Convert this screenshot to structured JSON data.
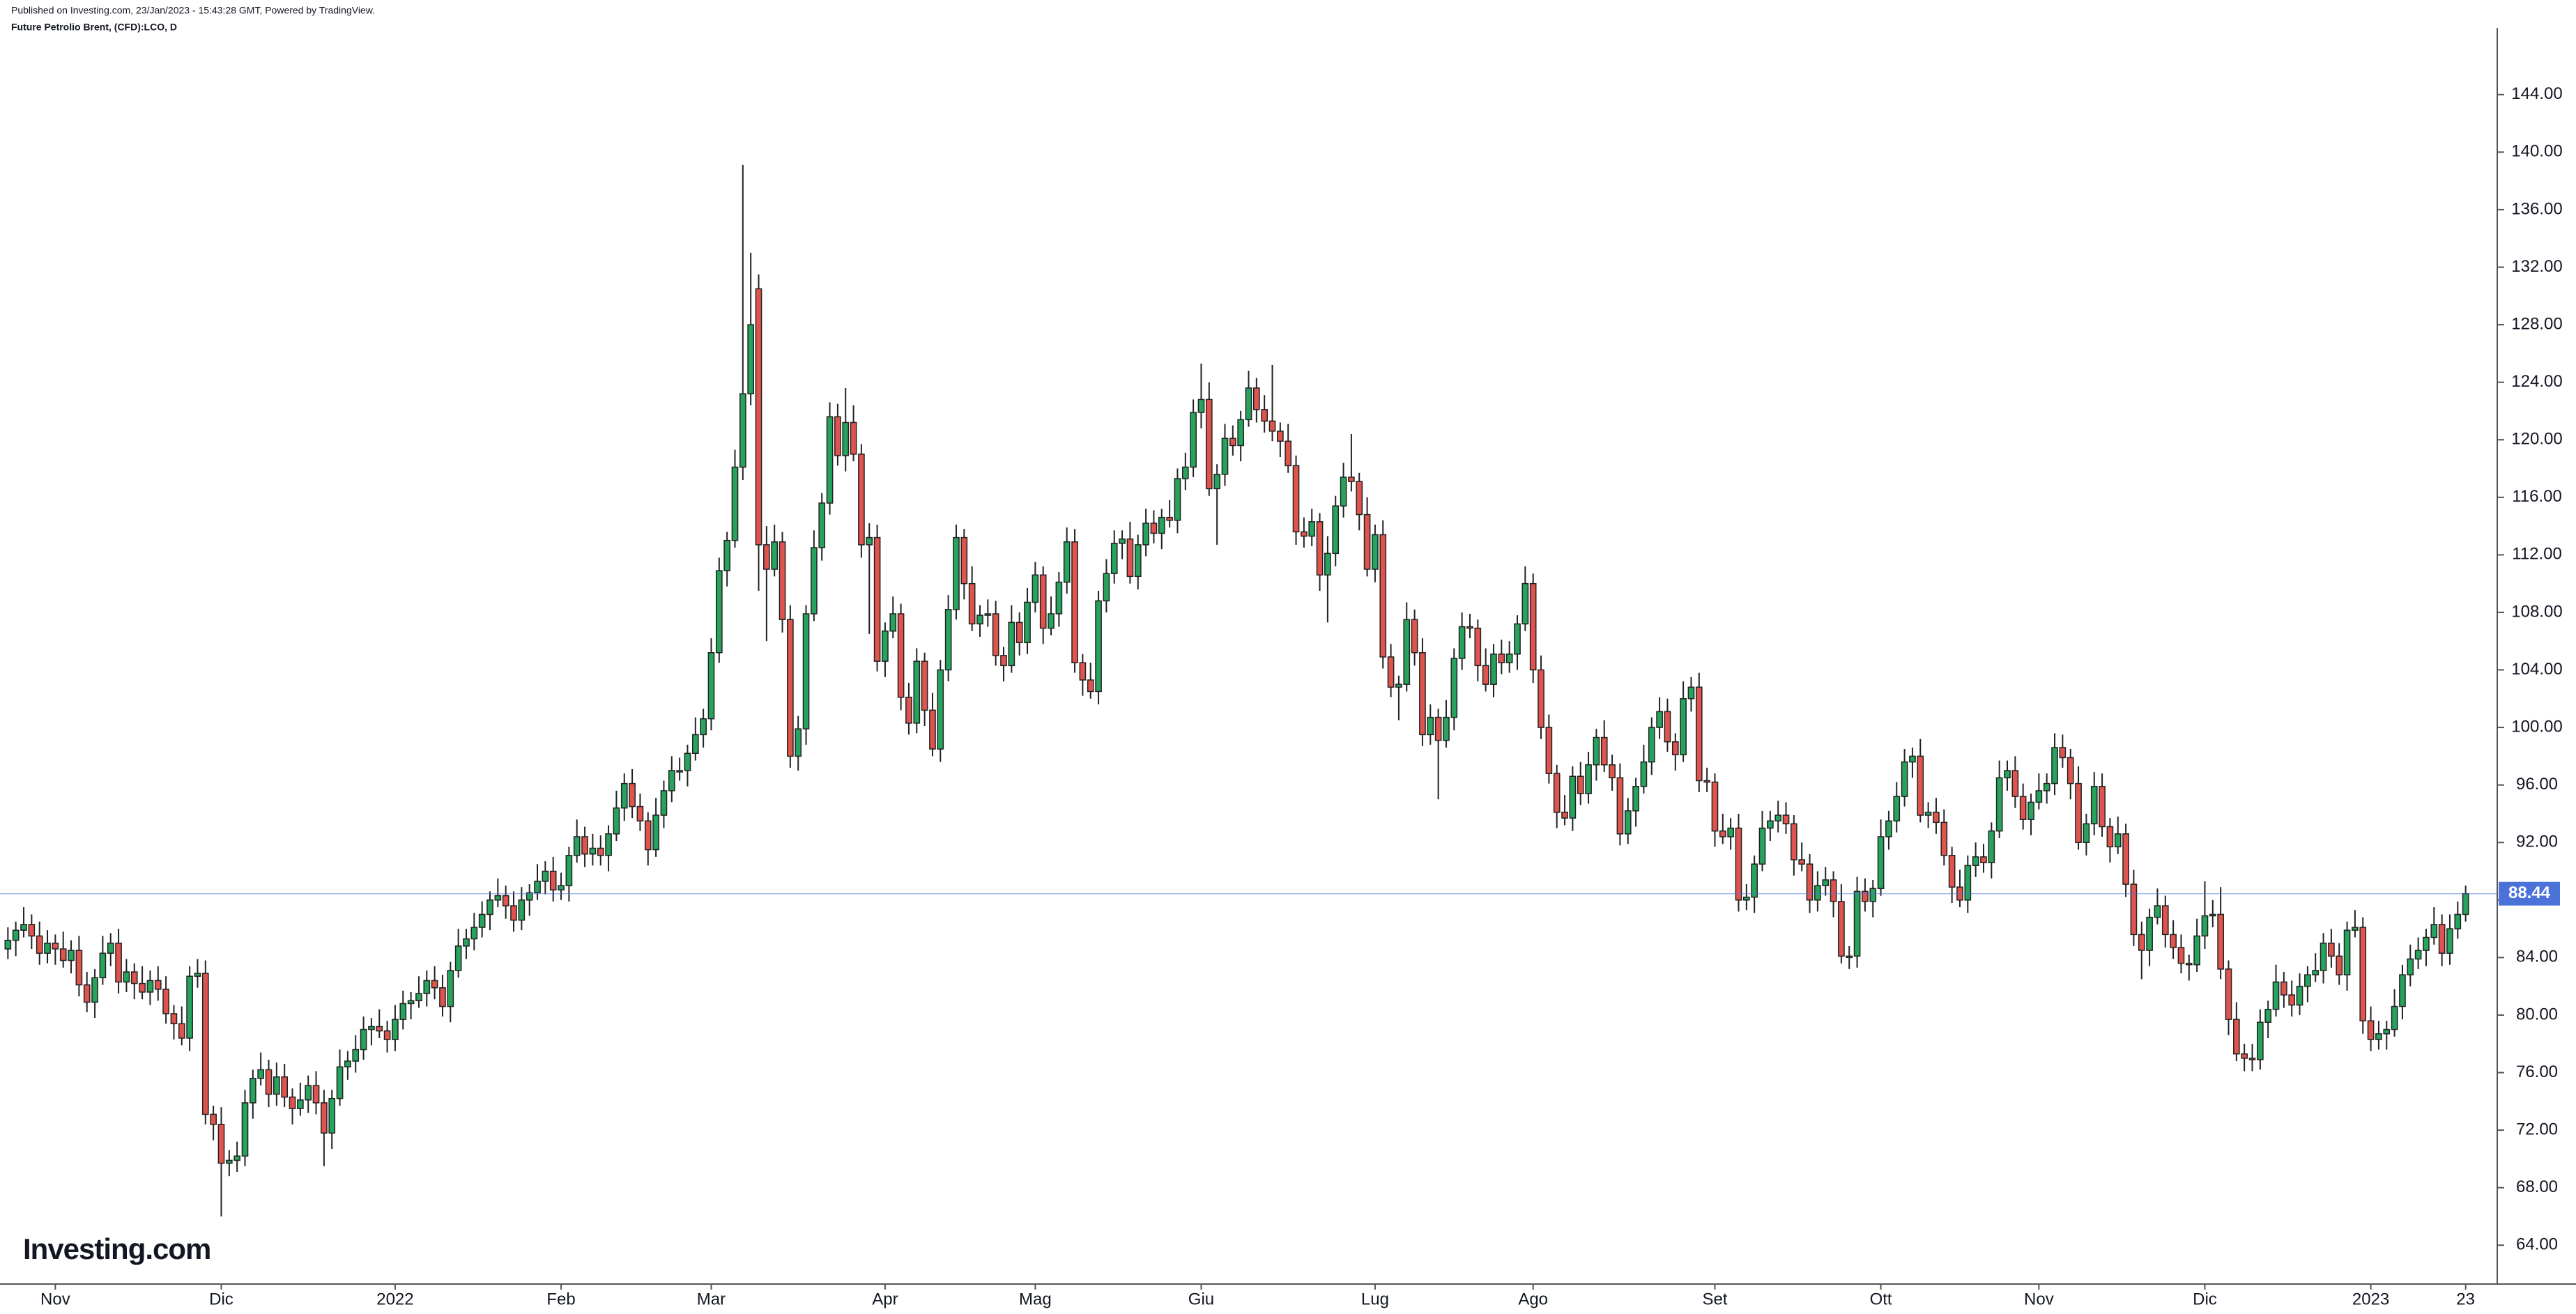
{
  "chart_data": {
    "type": "candlestick",
    "header": "Published on Investing.com, 23/Jan/2023 - 15:43:28 GMT, Powered by TradingView.",
    "title": "Future Petrolio Brent, (CFD):LCO, D",
    "logo": "Investing.com",
    "up_color": "#26a35c",
    "down_color": "#e0544e",
    "last_price": 88.44,
    "last_price_color": "#4a72d9",
    "xlim": [
      -1,
      315
    ],
    "xticks": [
      {
        "value": 6,
        "label": "Nov"
      },
      {
        "value": 27,
        "label": "Dic"
      },
      {
        "value": 49,
        "label": "2022"
      },
      {
        "value": 70,
        "label": "Feb"
      },
      {
        "value": 89,
        "label": "Mar"
      },
      {
        "value": 111,
        "label": "Apr"
      },
      {
        "value": 130,
        "label": "Mag"
      },
      {
        "value": 151,
        "label": "Giu"
      },
      {
        "value": 173,
        "label": "Lug"
      },
      {
        "value": 193,
        "label": "Ago"
      },
      {
        "value": 216,
        "label": "Set"
      },
      {
        "value": 237,
        "label": "Ott"
      },
      {
        "value": 257,
        "label": "Nov"
      },
      {
        "value": 278,
        "label": "Dic"
      },
      {
        "value": 299,
        "label": "2023"
      },
      {
        "value": 311,
        "label": "23"
      }
    ],
    "ylim": [
      61.3,
      148.3
    ],
    "yticks": [
      {
        "value": 64,
        "label": "64.00"
      },
      {
        "value": 68,
        "label": "68.00"
      },
      {
        "value": 72,
        "label": "72.00"
      },
      {
        "value": 76,
        "label": "76.00"
      },
      {
        "value": 80,
        "label": "80.00"
      },
      {
        "value": 84,
        "label": "84.00"
      },
      {
        "value": 88,
        "label": "88.00"
      },
      {
        "value": 92,
        "label": "92.00"
      },
      {
        "value": 96,
        "label": "96.00"
      },
      {
        "value": 100,
        "label": "100.00"
      },
      {
        "value": 104,
        "label": "104.00"
      },
      {
        "value": 108,
        "label": "108.00"
      },
      {
        "value": 112,
        "label": "112.00"
      },
      {
        "value": 116,
        "label": "116.00"
      },
      {
        "value": 120,
        "label": "120.00"
      },
      {
        "value": 124,
        "label": "124.00"
      },
      {
        "value": 128,
        "label": "128.00"
      },
      {
        "value": 132,
        "label": "132.00"
      },
      {
        "value": 136,
        "label": "136.00"
      },
      {
        "value": 140,
        "label": "140.00"
      },
      {
        "value": 144,
        "label": "144.00"
      }
    ],
    "open": [
      84.6,
      85.2,
      85.9,
      86.3,
      85.5,
      84.3,
      85.0,
      84.6,
      83.8,
      84.5,
      82.1,
      80.9,
      82.6,
      84.3,
      85.0,
      82.3,
      83.0,
      82.2,
      81.6,
      82.4,
      81.8,
      80.1,
      79.4,
      78.4,
      82.7,
      82.9,
      73.1,
      72.4,
      69.7,
      69.9,
      70.2,
      73.9,
      75.6,
      76.2,
      74.5,
      75.7,
      74.3,
      73.5,
      74.1,
      75.1,
      73.9,
      71.8,
      74.2,
      76.4,
      76.8,
      77.6,
      79.0,
      79.2,
      78.9,
      78.3,
      79.7,
      80.8,
      81.0,
      81.5,
      82.4,
      81.9,
      80.6,
      83.1,
      84.8,
      85.3,
      86.1,
      87.0,
      88.0,
      88.3,
      87.6,
      86.6,
      88.0,
      88.5,
      89.3,
      90.0,
      88.7,
      89.0,
      91.1,
      92.4,
      91.2,
      91.6,
      91.1,
      92.6,
      94.4,
      96.1,
      94.5,
      93.5,
      91.5,
      93.9,
      95.6,
      97.0,
      97.0,
      98.2,
      99.5,
      100.6,
      105.2,
      110.9,
      113.0,
      118.1,
      123.2,
      130.5,
      112.7,
      111.0,
      112.9,
      107.5,
      98.0,
      99.9,
      107.9,
      112.5,
      115.6,
      121.6,
      118.9,
      121.2,
      119.0,
      112.7,
      113.2,
      104.6,
      106.7,
      107.9,
      102.1,
      100.3,
      104.6,
      101.2,
      98.5,
      104.0,
      108.2,
      113.2,
      110.0,
      107.2,
      107.8,
      107.9,
      105.0,
      104.3,
      107.3,
      105.9,
      108.7,
      110.6,
      106.9,
      107.9,
      110.1,
      112.9,
      104.5,
      103.3,
      102.5,
      108.8,
      110.7,
      112.8,
      113.1,
      110.5,
      112.7,
      114.2,
      113.5,
      114.6,
      114.4,
      117.3,
      118.1,
      121.9,
      122.8,
      116.6,
      117.6,
      120.1,
      119.6,
      121.4,
      123.6,
      122.1,
      121.3,
      120.6,
      119.9,
      118.2,
      113.6,
      113.3,
      114.3,
      110.6,
      112.1,
      115.4,
      117.4,
      117.1,
      114.8,
      111.0,
      113.4,
      104.9,
      102.8,
      103.0,
      107.5,
      105.2,
      99.5,
      100.7,
      99.1,
      100.7,
      104.8,
      107.0,
      106.9,
      104.3,
      103.0,
      105.1,
      104.5,
      105.1,
      107.2,
      110.0,
      104.0,
      100.0,
      96.8,
      94.1,
      93.7,
      96.6,
      95.4,
      97.4,
      99.3,
      97.4,
      96.5,
      92.6,
      94.2,
      95.9,
      97.6,
      100.0,
      101.1,
      99.0,
      98.1,
      102.0,
      102.8,
      96.3,
      96.2,
      92.8,
      92.4,
      93.0,
      88.0,
      88.2,
      90.5,
      93.0,
      93.5,
      93.9,
      93.3,
      90.8,
      90.5,
      88.0,
      89.0,
      89.4,
      87.9,
      84.1,
      84.1,
      88.6,
      87.9,
      88.8,
      92.4,
      93.5,
      95.2,
      97.6,
      98.0,
      93.9,
      94.1,
      93.4,
      91.1,
      88.9,
      88.0,
      90.4,
      91.0,
      90.6,
      92.8,
      96.5,
      97.0,
      95.2,
      93.6,
      94.8,
      95.6,
      96.1,
      98.6,
      97.9,
      96.1,
      92.0,
      93.3,
      95.9,
      93.1,
      91.7,
      92.6,
      89.1,
      85.6,
      84.5,
      86.8,
      87.6,
      85.6,
      84.7,
      83.6,
      83.5,
      85.5,
      86.9,
      87.0,
      83.2,
      79.7,
      77.3,
      77.0,
      76.9,
      79.5,
      80.4,
      82.3,
      81.4,
      80.7,
      82.0,
      82.8,
      83.1,
      85.0,
      84.1,
      82.8,
      85.9,
      86.1,
      79.6,
      78.3,
      78.7,
      79.0,
      80.6,
      82.8,
      83.9,
      84.5,
      85.4,
      86.3,
      84.3,
      86.0,
      87.0
    ],
    "high": [
      86.1,
      86.5,
      87.5,
      87.0,
      86.5,
      85.9,
      85.6,
      85.8,
      85.2,
      85.5,
      83.0,
      83.2,
      85.5,
      85.7,
      86.0,
      83.9,
      83.6,
      83.4,
      83.1,
      83.4,
      82.7,
      80.7,
      80.6,
      83.4,
      83.9,
      83.8,
      73.7,
      73.6,
      70.6,
      71.2,
      74.8,
      76.2,
      77.4,
      76.9,
      76.7,
      76.6,
      74.9,
      75.3,
      75.8,
      76.1,
      74.8,
      74.8,
      77.6,
      77.5,
      78.6,
      79.9,
      79.8,
      80.4,
      79.6,
      80.7,
      81.7,
      81.6,
      82.7,
      83.1,
      83.4,
      82.8,
      83.7,
      86.0,
      86.0,
      87.1,
      87.9,
      88.6,
      89.5,
      89.0,
      88.6,
      88.9,
      89.1,
      90.5,
      90.7,
      91.0,
      89.9,
      91.7,
      93.6,
      93.1,
      92.6,
      92.5,
      93.2,
      95.6,
      96.8,
      97.1,
      95.4,
      94.1,
      95.1,
      96.3,
      98.0,
      97.9,
      98.8,
      100.7,
      101.3,
      106.2,
      111.8,
      113.6,
      119.3,
      139.1,
      133.0,
      131.5,
      114.0,
      114.1,
      113.6,
      108.5,
      100.8,
      108.5,
      113.7,
      116.3,
      122.6,
      122.5,
      123.6,
      122.4,
      119.7,
      114.2,
      114.1,
      107.3,
      109.1,
      108.6,
      103.1,
      105.5,
      105.2,
      102.4,
      104.7,
      109.2,
      114.1,
      113.8,
      111.2,
      108.5,
      108.9,
      108.8,
      105.6,
      108.5,
      108.0,
      109.7,
      111.5,
      111.2,
      109.1,
      110.8,
      113.9,
      113.8,
      105.1,
      104.5,
      109.5,
      111.7,
      113.7,
      113.7,
      114.3,
      113.4,
      115.2,
      115.1,
      115.2,
      115.8,
      118.0,
      119.1,
      122.8,
      125.3,
      124.0,
      118.3,
      121.1,
      121.0,
      122.0,
      124.8,
      124.3,
      123.1,
      125.2,
      121.2,
      121.1,
      118.9,
      114.6,
      115.2,
      114.9,
      113.3,
      116.1,
      118.4,
      120.4,
      117.7,
      116.0,
      114.1,
      114.4,
      105.8,
      103.6,
      108.7,
      108.2,
      106.2,
      101.6,
      101.3,
      101.9,
      105.5,
      108.0,
      107.9,
      107.5,
      105.5,
      105.8,
      106.1,
      106.0,
      107.8,
      111.2,
      110.7,
      105.0,
      100.9,
      97.4,
      95.3,
      97.3,
      97.6,
      98.3,
      99.9,
      100.5,
      98.1,
      97.5,
      95.1,
      96.5,
      98.8,
      100.7,
      102.1,
      102.0,
      99.6,
      103.2,
      103.5,
      103.8,
      97.2,
      96.8,
      94.0,
      93.7,
      94.0,
      89.1,
      91.1,
      94.2,
      94.2,
      94.9,
      94.8,
      93.9,
      92.0,
      91.2,
      90.0,
      90.3,
      90.0,
      89.1,
      84.8,
      89.6,
      89.5,
      89.4,
      93.6,
      94.2,
      96.2,
      98.5,
      98.6,
      99.2,
      94.8,
      95.1,
      94.3,
      91.7,
      90.1,
      91.1,
      92.0,
      91.9,
      93.4,
      97.7,
      97.7,
      98.0,
      96.1,
      95.4,
      96.8,
      96.8,
      99.6,
      99.5,
      98.5,
      97.3,
      94.0,
      96.9,
      96.8,
      93.7,
      93.8,
      93.3,
      90.1,
      86.5,
      87.4,
      88.8,
      88.3,
      86.6,
      85.6,
      84.2,
      86.7,
      89.3,
      88.0,
      88.9,
      83.8,
      80.9,
      78.0,
      78.0,
      80.4,
      81.0,
      83.5,
      83.0,
      82.4,
      82.9,
      83.4,
      84.3,
      85.7,
      86.0,
      85.0,
      86.5,
      87.3,
      86.8,
      80.6,
      79.6,
      79.6,
      81.8,
      83.5,
      84.9,
      85.4,
      86.0,
      87.5,
      87.0,
      87.0,
      87.9,
      89.0
    ],
    "low": [
      83.9,
      84.1,
      85.4,
      84.6,
      83.5,
      83.6,
      83.5,
      83.3,
      82.9,
      81.3,
      80.2,
      79.8,
      82.1,
      83.4,
      81.5,
      81.6,
      81.1,
      81.1,
      80.7,
      81.0,
      79.4,
      78.3,
      77.9,
      77.5,
      81.9,
      72.4,
      71.3,
      66.0,
      68.8,
      69.1,
      69.5,
      72.8,
      75.1,
      73.6,
      73.7,
      73.6,
      72.4,
      73.0,
      73.2,
      73.1,
      69.5,
      70.7,
      73.7,
      75.5,
      76.0,
      76.9,
      77.9,
      78.4,
      77.4,
      77.5,
      79.0,
      79.7,
      80.5,
      80.6,
      81.1,
      79.9,
      79.5,
      82.6,
      83.9,
      84.5,
      85.4,
      85.9,
      87.5,
      86.7,
      85.8,
      85.9,
      86.9,
      88.0,
      88.4,
      87.9,
      88.0,
      87.9,
      90.6,
      90.3,
      90.4,
      90.4,
      90.0,
      92.1,
      93.5,
      93.7,
      92.8,
      90.4,
      91.0,
      93.0,
      94.8,
      96.3,
      95.9,
      97.7,
      98.6,
      99.8,
      104.5,
      109.8,
      112.5,
      117.2,
      122.4,
      109.5,
      106.0,
      110.5,
      106.6,
      97.2,
      97.0,
      98.8,
      107.4,
      111.6,
      114.8,
      118.2,
      117.8,
      118.5,
      111.8,
      106.5,
      103.9,
      103.5,
      106.2,
      101.2,
      99.5,
      99.6,
      100.1,
      98.0,
      97.6,
      103.2,
      107.5,
      108.9,
      106.7,
      106.3,
      107.0,
      104.3,
      103.2,
      103.8,
      105.0,
      105.1,
      108.0,
      105.8,
      106.4,
      107.0,
      109.3,
      103.8,
      102.2,
      102.0,
      101.6,
      108.0,
      110.0,
      111.7,
      110.0,
      109.6,
      111.9,
      112.8,
      112.4,
      113.9,
      113.5,
      116.5,
      117.4,
      120.8,
      116.1,
      112.7,
      116.8,
      118.9,
      118.5,
      120.9,
      121.2,
      120.5,
      119.9,
      118.8,
      117.7,
      112.7,
      112.5,
      112.6,
      109.5,
      107.3,
      111.2,
      114.6,
      116.4,
      113.7,
      110.5,
      110.1,
      104.1,
      102.1,
      100.5,
      102.5,
      104.3,
      98.7,
      98.8,
      95.0,
      98.6,
      99.8,
      104.0,
      106.2,
      103.2,
      102.5,
      102.1,
      103.7,
      103.8,
      104.0,
      106.7,
      103.1,
      99.2,
      96.1,
      93.0,
      93.2,
      92.8,
      94.6,
      94.7,
      96.3,
      96.9,
      95.6,
      91.8,
      91.9,
      93.1,
      95.4,
      96.7,
      99.2,
      98.3,
      97.0,
      97.6,
      101.1,
      95.5,
      95.5,
      91.7,
      91.9,
      91.5,
      87.2,
      87.3,
      87.1,
      90.0,
      92.1,
      92.7,
      92.6,
      89.7,
      90.0,
      87.1,
      87.2,
      88.3,
      86.8,
      83.6,
      83.2,
      83.3,
      87.2,
      86.8,
      88.3,
      91.5,
      92.7,
      94.5,
      96.5,
      93.4,
      93.0,
      92.6,
      90.4,
      87.8,
      87.5,
      87.1,
      89.6,
      89.9,
      89.5,
      92.3,
      95.6,
      94.4,
      92.9,
      92.5,
      94.3,
      94.7,
      95.3,
      97.2,
      95.0,
      91.5,
      91.1,
      92.5,
      92.4,
      90.6,
      91.2,
      88.2,
      84.8,
      82.5,
      83.4,
      86.3,
      84.7,
      83.9,
      82.9,
      82.4,
      83.0,
      84.6,
      86.1,
      82.5,
      78.6,
      76.8,
      76.1,
      76.1,
      76.2,
      78.4,
      79.9,
      80.5,
      79.9,
      80.0,
      80.9,
      82.3,
      82.2,
      83.3,
      82.1,
      81.7,
      85.4,
      78.7,
      77.5,
      77.6,
      77.6,
      78.5,
      79.7,
      82.0,
      83.2,
      83.4,
      84.9,
      83.4,
      83.5,
      85.3,
      86.5
    ],
    "close": [
      85.2,
      85.9,
      86.3,
      85.5,
      84.3,
      85.0,
      84.6,
      83.8,
      84.5,
      82.1,
      80.9,
      82.6,
      84.3,
      85.0,
      82.3,
      83.0,
      82.2,
      81.6,
      82.4,
      81.8,
      80.1,
      79.4,
      78.4,
      82.7,
      82.9,
      73.1,
      72.4,
      69.7,
      69.9,
      70.2,
      73.9,
      75.6,
      76.2,
      74.5,
      75.7,
      74.3,
      73.5,
      74.1,
      75.1,
      73.9,
      71.8,
      74.2,
      76.4,
      76.8,
      77.6,
      79.0,
      79.2,
      78.9,
      78.3,
      79.7,
      80.8,
      81.0,
      81.5,
      82.4,
      81.9,
      80.6,
      83.1,
      84.8,
      85.3,
      86.1,
      87.0,
      88.0,
      88.3,
      87.6,
      86.6,
      88.0,
      88.5,
      89.3,
      90.0,
      88.7,
      89.0,
      91.1,
      92.4,
      91.2,
      91.6,
      91.1,
      92.6,
      94.4,
      96.1,
      94.5,
      93.5,
      91.5,
      93.9,
      95.6,
      97.0,
      97.0,
      98.2,
      99.5,
      100.6,
      105.2,
      110.9,
      113.0,
      118.1,
      123.2,
      128.0,
      112.7,
      111.0,
      112.9,
      107.5,
      98.0,
      99.9,
      107.9,
      112.5,
      115.6,
      121.6,
      118.9,
      121.2,
      119.0,
      112.7,
      113.2,
      104.6,
      106.7,
      107.9,
      102.1,
      100.3,
      104.6,
      101.2,
      98.5,
      104.0,
      108.2,
      113.2,
      110.0,
      107.2,
      107.8,
      107.9,
      105.0,
      104.3,
      107.3,
      105.9,
      108.7,
      110.6,
      106.9,
      107.9,
      110.1,
      112.9,
      104.5,
      103.3,
      102.5,
      108.8,
      110.7,
      112.8,
      113.1,
      110.5,
      112.7,
      114.2,
      113.5,
      114.6,
      114.4,
      117.3,
      118.1,
      121.9,
      122.8,
      116.6,
      117.6,
      120.1,
      119.6,
      121.4,
      123.6,
      122.1,
      121.3,
      120.6,
      119.9,
      118.2,
      113.6,
      113.3,
      114.3,
      110.6,
      112.1,
      115.4,
      117.4,
      117.1,
      114.8,
      111.0,
      113.4,
      104.9,
      102.8,
      103.0,
      107.5,
      105.2,
      99.5,
      100.7,
      99.1,
      100.7,
      104.8,
      107.0,
      106.9,
      104.3,
      103.0,
      105.1,
      104.5,
      105.1,
      107.2,
      110.0,
      104.0,
      100.0,
      96.8,
      94.1,
      93.7,
      96.6,
      95.4,
      97.4,
      99.3,
      97.4,
      96.5,
      92.6,
      94.2,
      95.9,
      97.6,
      100.0,
      101.1,
      99.0,
      98.1,
      102.0,
      102.8,
      96.3,
      96.2,
      92.8,
      92.4,
      93.0,
      88.0,
      88.2,
      90.5,
      93.0,
      93.5,
      93.9,
      93.3,
      90.8,
      90.5,
      88.0,
      89.0,
      89.4,
      87.9,
      84.1,
      84.1,
      88.6,
      87.9,
      88.8,
      92.4,
      93.5,
      95.2,
      97.6,
      98.0,
      93.9,
      94.1,
      93.4,
      91.1,
      88.9,
      88.0,
      90.4,
      91.0,
      90.6,
      92.8,
      96.5,
      97.0,
      95.2,
      93.6,
      94.8,
      95.6,
      96.1,
      98.6,
      97.9,
      96.1,
      92.0,
      93.3,
      95.9,
      93.1,
      91.7,
      92.6,
      89.1,
      85.6,
      84.5,
      86.8,
      87.6,
      85.6,
      84.7,
      83.6,
      83.5,
      85.5,
      86.9,
      87.0,
      83.2,
      79.7,
      77.3,
      77.0,
      76.9,
      79.5,
      80.4,
      82.3,
      81.4,
      80.7,
      82.0,
      82.8,
      83.1,
      85.0,
      84.1,
      82.8,
      85.9,
      86.1,
      79.6,
      78.3,
      78.7,
      79.0,
      80.6,
      82.8,
      83.9,
      84.5,
      85.4,
      86.3,
      84.3,
      86.0,
      87.0,
      88.44
    ]
  }
}
